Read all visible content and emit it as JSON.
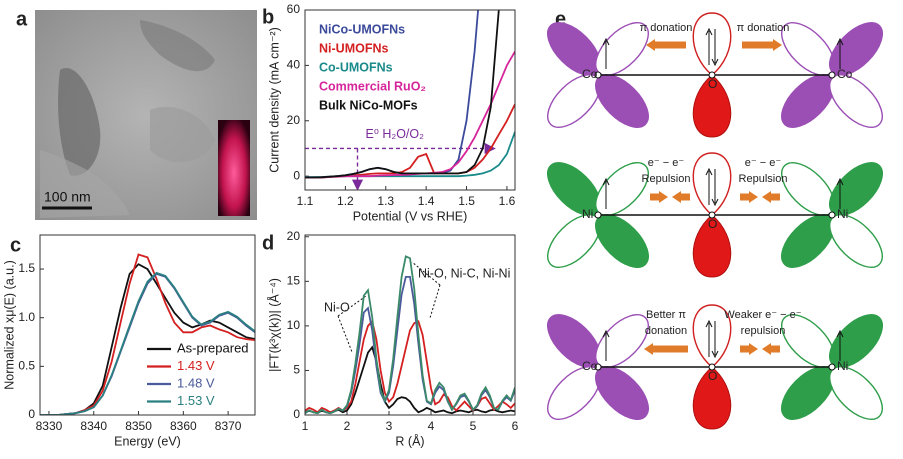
{
  "panel_labels": [
    "a",
    "b",
    "c",
    "d",
    "e"
  ],
  "image": {
    "scale_bar": "100 nm"
  },
  "chart_data": [
    {
      "type": "line",
      "xlabel": "Potential (V vs RHE)",
      "ylabel": "Current density (mA cm⁻²)",
      "x": [
        1.1,
        1.12,
        1.14,
        1.16,
        1.18,
        1.2,
        1.22,
        1.24,
        1.26,
        1.28,
        1.3,
        1.32,
        1.34,
        1.36,
        1.38,
        1.4,
        1.42,
        1.44,
        1.46,
        1.48,
        1.5,
        1.52,
        1.54,
        1.56,
        1.58,
        1.6,
        1.62
      ],
      "xlim": [
        1.1,
        1.62
      ],
      "xticks": [
        1.1,
        1.2,
        1.3,
        1.4,
        1.5,
        1.6
      ],
      "ylim": [
        -5,
        60
      ],
      "yticks": [
        0,
        20,
        40,
        60
      ],
      "legend": "upper left",
      "legend_swatch": false,
      "reference_level": 10,
      "reference_potential": 1.23,
      "annotation": "E⁰ H₂O/O₂",
      "series": [
        {
          "name": "NiCo-UMOFNs",
          "color": "#3b4a9a",
          "values": [
            -0.5,
            -0.5,
            -0.5,
            -0.3,
            0,
            0.3,
            0.8,
            1.5,
            2.5,
            3,
            2.5,
            1.5,
            1,
            1,
            1,
            1,
            1,
            1.2,
            2,
            6,
            20,
            45,
            80,
            null,
            null,
            null,
            null
          ]
        },
        {
          "name": "Ni-UMOFNs",
          "color": "#d42020",
          "values": [
            -0.5,
            -0.5,
            -0.5,
            -0.3,
            0,
            0,
            0.3,
            0.5,
            0.8,
            1,
            1,
            1,
            1.5,
            3,
            7,
            8,
            1,
            1,
            1,
            1,
            1.5,
            3,
            6,
            10,
            15,
            20,
            26
          ]
        },
        {
          "name": "Co-UMOFNs",
          "color": "#1a8a8a",
          "values": [
            -0.3,
            -0.3,
            -0.3,
            -0.2,
            0,
            0,
            0,
            0,
            0,
            0,
            0,
            0,
            0,
            0,
            0,
            0,
            0,
            0,
            0,
            0,
            0.2,
            0.5,
            1,
            2,
            4,
            8,
            16
          ]
        },
        {
          "name": "Commercial RuO₂",
          "color": "#d6259b",
          "values": [
            -0.5,
            -0.5,
            -0.4,
            -0.3,
            -0.2,
            0,
            0,
            0,
            0,
            0.2,
            0.3,
            0.4,
            0.5,
            0.6,
            0.8,
            1,
            1.2,
            1.5,
            2.5,
            5,
            9,
            14,
            20,
            26,
            33,
            40,
            45
          ]
        },
        {
          "name": "Bulk NiCo-MOFs",
          "color": "#111111",
          "values": [
            -0.5,
            -0.5,
            -0.4,
            -0.2,
            0,
            0.3,
            0.8,
            1.5,
            2.5,
            3,
            2.5,
            1.5,
            1,
            1,
            1,
            1,
            1,
            1,
            1,
            1,
            1.5,
            4,
            10,
            25,
            60,
            null,
            null
          ]
        }
      ]
    },
    {
      "type": "line",
      "xlabel": "Energy (eV)",
      "ylabel": "Normalized xμ(E) (a.u.)",
      "x": [
        8328,
        8330,
        8332,
        8334,
        8336,
        8338,
        8340,
        8342,
        8344,
        8346,
        8348,
        8350,
        8352,
        8354,
        8356,
        8358,
        8360,
        8362,
        8364,
        8366,
        8368,
        8370,
        8372,
        8374,
        8376
      ],
      "xlim": [
        8328,
        8376
      ],
      "xticks": [
        8330,
        8340,
        8350,
        8360,
        8370
      ],
      "ylim": [
        0,
        1.85
      ],
      "yticks": [
        0,
        0.5,
        {
          "value": 1,
          "label": "1.0"
        },
        1.5
      ],
      "legend": "lower right",
      "legend_swatch": true,
      "series": [
        {
          "name": "As-prepared",
          "color": "#111111",
          "values": [
            0,
            0,
            0,
            0.01,
            0.02,
            0.05,
            0.12,
            0.3,
            0.7,
            1.1,
            1.45,
            1.55,
            1.5,
            1.35,
            1.2,
            1.05,
            0.95,
            0.9,
            0.93,
            0.97,
            0.95,
            0.9,
            0.85,
            0.8,
            0.78
          ]
        },
        {
          "name": "1.43 V",
          "color": "#d42020",
          "values": [
            0,
            0,
            0,
            0.01,
            0.02,
            0.05,
            0.1,
            0.25,
            0.55,
            0.95,
            1.35,
            1.65,
            1.62,
            1.4,
            1.15,
            0.95,
            0.85,
            0.85,
            0.9,
            0.92,
            0.88,
            0.85,
            0.8,
            0.78,
            0.77
          ]
        },
        {
          "name": "1.48 V",
          "color": "#4a5a9a",
          "values": [
            0,
            0,
            0,
            0.01,
            0.02,
            0.04,
            0.08,
            0.2,
            0.4,
            0.65,
            0.9,
            1.15,
            1.35,
            1.45,
            1.42,
            1.3,
            1.15,
            1.0,
            0.92,
            0.95,
            1.02,
            1.05,
            1.0,
            0.92,
            0.85
          ]
        },
        {
          "name": "1.53 V",
          "color": "#2a8080",
          "values": [
            0,
            0,
            0,
            0.01,
            0.02,
            0.04,
            0.08,
            0.2,
            0.41,
            0.66,
            0.92,
            1.17,
            1.37,
            1.46,
            1.43,
            1.31,
            1.16,
            1.01,
            0.93,
            0.96,
            1.03,
            1.06,
            1.01,
            0.93,
            0.86
          ]
        }
      ]
    },
    {
      "type": "line",
      "xlabel": "R (Å)",
      "ylabel": "|FT(k³χ(k))| (Å⁻⁴)",
      "x": [
        1,
        1.1,
        1.2,
        1.3,
        1.4,
        1.5,
        1.6,
        1.7,
        1.8,
        1.9,
        2,
        2.1,
        2.2,
        2.3,
        2.4,
        2.5,
        2.6,
        2.7,
        2.8,
        2.9,
        3,
        3.1,
        3.2,
        3.3,
        3.4,
        3.5,
        3.6,
        3.7,
        3.8,
        3.9,
        4,
        4.1,
        4.2,
        4.3,
        4.4,
        4.5,
        4.6,
        4.7,
        4.8,
        4.9,
        5,
        5.1,
        5.2,
        5.3,
        5.4,
        5.5,
        5.6,
        5.7,
        5.8,
        5.9,
        6
      ],
      "xlim": [
        1,
        6
      ],
      "xticks": [
        1,
        2,
        3,
        4,
        5,
        6
      ],
      "ylim": [
        0,
        20.2
      ],
      "yticks": [
        0,
        5,
        10,
        15,
        20
      ],
      "annotations": [
        "Ni-O",
        "Ni-O, Ni-C, Ni-Ni"
      ],
      "series": [
        {
          "name": "As-prepared",
          "color": "#111111",
          "values": [
            0.3,
            0.5,
            0.3,
            0.2,
            0.5,
            0.3,
            0.2,
            0.4,
            0.6,
            0.3,
            0.5,
            1.2,
            2.5,
            4,
            5.5,
            7,
            7.6,
            6,
            3.5,
            1.5,
            0.8,
            1.2,
            1.8,
            2,
            1.9,
            1.5,
            0.8,
            0.3,
            0.5,
            0.8,
            0.6,
            0.3,
            0.4,
            0.5,
            0.3,
            0.2,
            0.4,
            0.5,
            0.4,
            0.3,
            0.5,
            0.6,
            0.4,
            0.3,
            0.5,
            0.6,
            0.4,
            0.3,
            0.4,
            0.5,
            0.4
          ]
        },
        {
          "name": "1.43 V",
          "color": "#d42020",
          "values": [
            0.5,
            0.8,
            0.6,
            0.3,
            0.8,
            0.6,
            0.3,
            0.5,
            0.8,
            0.5,
            0.8,
            1.5,
            3.5,
            6,
            8.5,
            10,
            10.5,
            8.5,
            5,
            2.5,
            1.5,
            2,
            3.5,
            5.5,
            7.5,
            9.5,
            10.3,
            10.5,
            9,
            6,
            3,
            1.2,
            1.5,
            2.3,
            2,
            1,
            0.5,
            1,
            1.5,
            1,
            0.5,
            1,
            1.8,
            2,
            1.3,
            0.6,
            1,
            1.5,
            1.2,
            0.8,
            1.3
          ]
        },
        {
          "name": "1.48 V",
          "color": "#4a5a9a",
          "values": [
            0.2,
            0.5,
            0.3,
            0.2,
            0.6,
            0.3,
            0.2,
            0.4,
            0.7,
            0.5,
            1,
            2.5,
            5,
            8,
            11.5,
            12,
            9.5,
            5.5,
            2.5,
            1.5,
            2.5,
            5.5,
            9.5,
            13.5,
            15.5,
            15.5,
            12.5,
            8,
            4,
            1.5,
            1.2,
            2.5,
            3.2,
            2.8,
            1.5,
            0.6,
            1.2,
            2,
            2.2,
            1.5,
            0.6,
            1,
            2.2,
            2.8,
            2,
            0.8,
            0.6,
            1.5,
            2,
            1.6,
            2.8
          ]
        },
        {
          "name": "1.53 V",
          "color": "#3a8a6a",
          "values": [
            0.2,
            0.5,
            0.3,
            0.2,
            0.6,
            0.3,
            0.2,
            0.4,
            0.7,
            0.5,
            1.1,
            2.8,
            5.8,
            9.3,
            13.4,
            14,
            11,
            6.3,
            2.8,
            1.6,
            2.8,
            6.3,
            11,
            15.5,
            17.8,
            17.6,
            14.2,
            9,
            4.5,
            1.6,
            1.3,
            2.8,
            3.6,
            3.1,
            1.6,
            0.6,
            1.3,
            2.2,
            2.4,
            1.6,
            0.6,
            1.1,
            2.4,
            3.1,
            2.2,
            0.8,
            0.6,
            1.6,
            2.2,
            1.7,
            3.1
          ]
        }
      ]
    }
  ],
  "diagram": {
    "rows": [
      {
        "left_metal": "Co",
        "center": "O",
        "right_metal": "Co",
        "left_note": [
          "π donation"
        ],
        "right_note": [
          "π donation"
        ]
      },
      {
        "left_metal": "Ni",
        "center": "O",
        "right_metal": "Ni",
        "left_note": [
          "e⁻ − e⁻",
          "Repulsion"
        ],
        "right_note": [
          "e⁻ − e⁻",
          "Repulsion"
        ]
      },
      {
        "left_metal": "Co",
        "center": "O",
        "right_metal": "Ni",
        "left_note": [
          "Better π",
          "donation"
        ],
        "right_note": [
          "Weaker e⁻ − e⁻",
          "repulsion"
        ]
      }
    ]
  }
}
